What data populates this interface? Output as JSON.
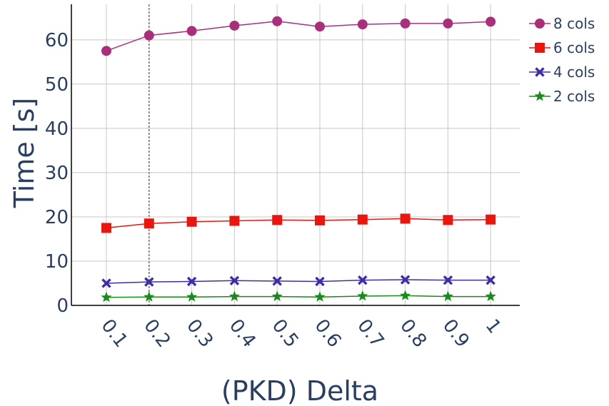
{
  "chart_data": {
    "type": "line",
    "xlabel": "(PKD) Delta",
    "ylabel": "Time [s]",
    "categories": [
      "0.1",
      "0.2",
      "0.3",
      "0.4",
      "0.5",
      "0.6",
      "0.7",
      "0.8",
      "0.9",
      "1"
    ],
    "ylim": [
      0,
      69
    ],
    "y_ticks": [
      "0",
      "10",
      "20",
      "30",
      "40",
      "50",
      "60"
    ],
    "grid": true,
    "highlight_x": "0.2",
    "legend_position": "top-right",
    "series": [
      {
        "name": "8 cols",
        "color": "#a8307a",
        "marker": "circle",
        "values": [
          57.5,
          61.0,
          62.0,
          63.2,
          64.2,
          63.0,
          63.5,
          63.7,
          63.7,
          64.1
        ]
      },
      {
        "name": "6 cols",
        "color": "#e8160f",
        "marker": "square",
        "values": [
          17.5,
          18.5,
          18.9,
          19.1,
          19.3,
          19.2,
          19.4,
          19.6,
          19.3,
          19.4
        ]
      },
      {
        "name": "4 cols",
        "color": "#3b2fa8",
        "marker": "x",
        "values": [
          5.0,
          5.3,
          5.4,
          5.6,
          5.5,
          5.4,
          5.7,
          5.8,
          5.7,
          5.7
        ]
      },
      {
        "name": "2 cols",
        "color": "#1a8a1a",
        "marker": "star",
        "values": [
          1.8,
          1.9,
          1.9,
          2.0,
          2.0,
          1.9,
          2.1,
          2.2,
          2.0,
          2.0
        ]
      }
    ]
  }
}
